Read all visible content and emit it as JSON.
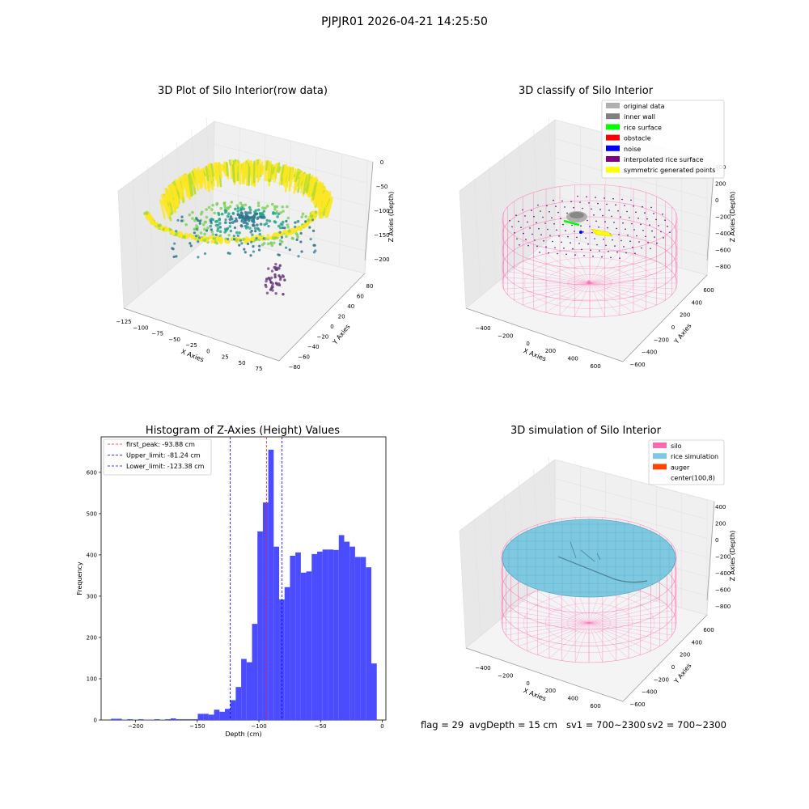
{
  "suptitle": "PJPJR01 2026-04-21 14:25:50",
  "footer": {
    "flag": "flag = 29",
    "avg_depth": "avgDepth = 15 cm",
    "sv1": "sv1 = 700~2300",
    "sv2": "sv2 = 700~2300"
  },
  "colors": {
    "histogram_bar": "#4b4bff",
    "first_peak_line": "#ff2020",
    "limit_lines": "#0000ee",
    "viridis_high": "#fde725",
    "viridis_mid": "#21a585",
    "viridis_low": "#5b2e76",
    "silo_mesh": "#ff69b4",
    "rice_simulation": "#7ec8e0",
    "auger": "#ff4500"
  },
  "panels": {
    "raw": {
      "title": "3D Plot of Silo Interior(row data)",
      "xlabel": "X Axies",
      "ylabel": "Y Axies",
      "zlabel": "Z Axies (Depth)",
      "x_ticks": [
        "−125",
        "−100",
        "−75",
        "−50",
        "−25",
        "0",
        "25",
        "50",
        "75"
      ],
      "y_ticks": [
        "80",
        "60",
        "40",
        "20",
        "0",
        "−20",
        "−40",
        "−60",
        "−80"
      ],
      "z_ticks": [
        "0",
        "−50",
        "−100",
        "−150",
        "−200"
      ]
    },
    "classify": {
      "title": "3D classify of Silo Interior",
      "xlabel": "X Axies",
      "ylabel": "Y Axies",
      "zlabel": "Z Axies (Depth)",
      "x_ticks": [
        "−400",
        "−200",
        "0",
        "200",
        "400",
        "600"
      ],
      "y_ticks": [
        "600",
        "400",
        "200",
        "0",
        "−200",
        "−400",
        "−600"
      ],
      "z_ticks": [
        "400",
        "200",
        "0",
        "−200",
        "−400",
        "−600",
        "−800"
      ],
      "legend": [
        {
          "label": "original data",
          "color": "#b0b0b0"
        },
        {
          "label": "inner wall",
          "color": "#808080"
        },
        {
          "label": "rice surface",
          "color": "#00ff00"
        },
        {
          "label": "obstacle",
          "color": "#ff0000"
        },
        {
          "label": "noise",
          "color": "#0000ff"
        },
        {
          "label": "interpolated rice surface",
          "color": "#800080"
        },
        {
          "label": "symmetric generated points",
          "color": "#ffff00"
        }
      ]
    },
    "simulation": {
      "title": "3D simulation of Silo Interior",
      "xlabel": "X Axies",
      "ylabel": "Y Axies",
      "zlabel": "Z Axies (Depth)",
      "x_ticks": [
        "−400",
        "−200",
        "0",
        "200",
        "400",
        "600"
      ],
      "y_ticks": [
        "600",
        "400",
        "200",
        "0",
        "−200",
        "−400",
        "−600"
      ],
      "z_ticks": [
        "400",
        "200",
        "0",
        "−200",
        "−400",
        "−600",
        "−800"
      ],
      "legend": [
        {
          "label": "silo",
          "color": "#ff69b4"
        },
        {
          "label": "rice simulation",
          "color": "#7ec8e0"
        },
        {
          "label": "auger",
          "color": "#ff4500"
        },
        {
          "label": "center(100,8)",
          "color": ""
        }
      ]
    }
  },
  "chart_data": {
    "type": "bar",
    "title": "Histogram of Z-Axies (Height) Values",
    "xlabel": "Depth (cm)",
    "ylabel": "Frequency",
    "xlim": [
      -228,
      3
    ],
    "ylim": [
      0,
      686
    ],
    "x_ticks": [
      -200,
      -150,
      -100,
      -50,
      0
    ],
    "y_ticks": [
      0,
      100,
      200,
      300,
      400,
      500,
      600
    ],
    "bin_width": 4.4,
    "bin_start": -220,
    "values": [
      3,
      3,
      1,
      2,
      1,
      2,
      1,
      1,
      2,
      1,
      2,
      4,
      2,
      2,
      2,
      2,
      15,
      15,
      13,
      25,
      20,
      27,
      48,
      80,
      148,
      140,
      233,
      457,
      527,
      655,
      420,
      292,
      322,
      398,
      406,
      357,
      360,
      402,
      408,
      413,
      413,
      412,
      448,
      432,
      420,
      395,
      395,
      370,
      137
    ],
    "lines": [
      {
        "label": "first_peak: -93.88 cm",
        "x": -93.88,
        "color": "#ff2020"
      },
      {
        "label": "Upper_limit: -81.24 cm",
        "x": -81.24,
        "color": "#0000ee"
      },
      {
        "label": "Lower_limit: -123.38 cm",
        "x": -123.38,
        "color": "#0000ee"
      }
    ],
    "legend_position": "upper-left"
  }
}
